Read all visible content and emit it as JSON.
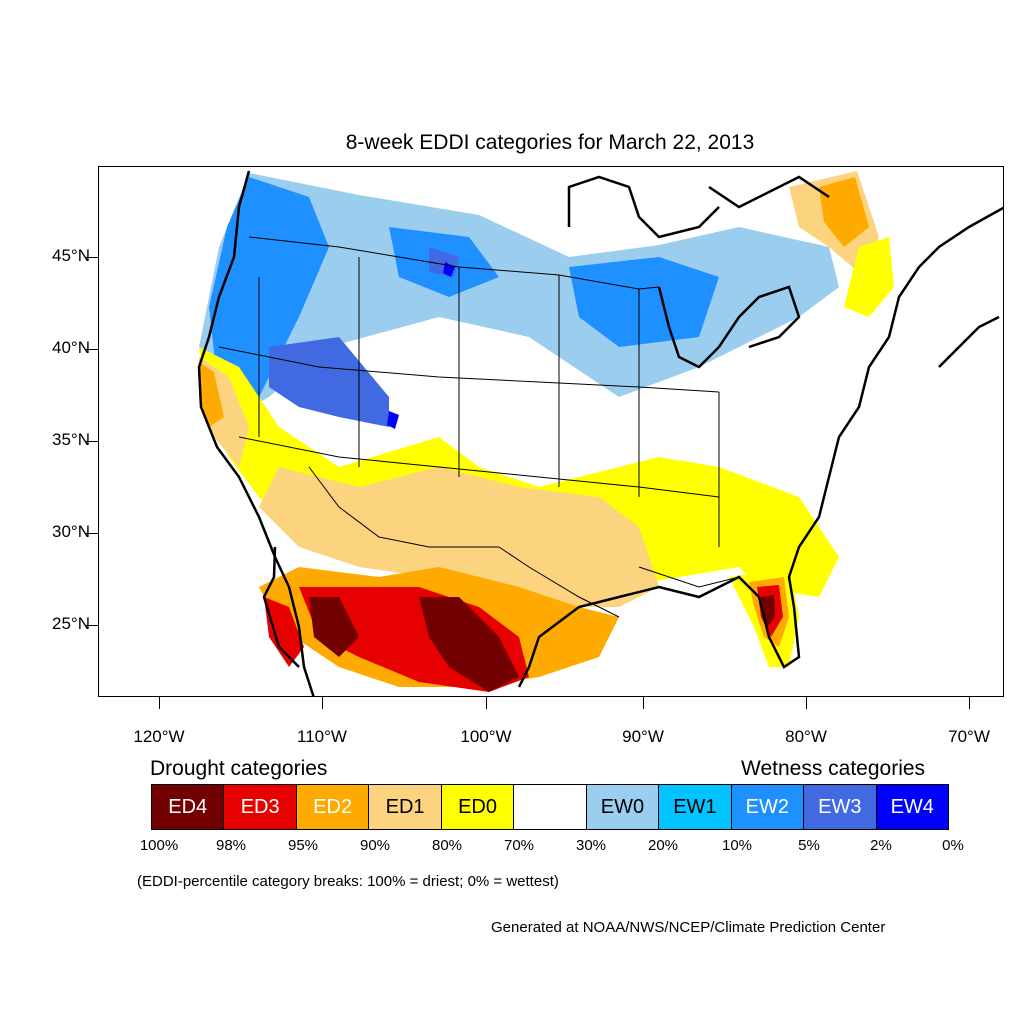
{
  "title": "8-week EDDI categories for March 22, 2013",
  "latitude_labels": [
    "45°N",
    "40°N",
    "35°N",
    "30°N",
    "25°N"
  ],
  "longitude_labels": [
    "120°W",
    "110°W",
    "100°W",
    "90°W",
    "80°W",
    "70°W"
  ],
  "legend": {
    "drought_heading": "Drought categories",
    "wetness_heading": "Wetness categories",
    "categories": [
      {
        "label": "ED4",
        "color": "#730000",
        "text_color": "#ffffff"
      },
      {
        "label": "ED3",
        "color": "#e60000",
        "text_color": "#ffffff"
      },
      {
        "label": "ED2",
        "color": "#ffaa00",
        "text_color": "#ffffff"
      },
      {
        "label": "ED1",
        "color": "#fcd37f",
        "text_color": "#000000"
      },
      {
        "label": "ED0",
        "color": "#ffff00",
        "text_color": "#000000"
      },
      {
        "label": "",
        "color": "#ffffff",
        "text_color": "#000000"
      },
      {
        "label": "EW0",
        "color": "#9bcdef",
        "text_color": "#000000"
      },
      {
        "label": "EW1",
        "color": "#00c3ff",
        "text_color": "#000000"
      },
      {
        "label": "EW2",
        "color": "#1e90ff",
        "text_color": "#ffffff"
      },
      {
        "label": "EW3",
        "color": "#4169e1",
        "text_color": "#ffffff"
      },
      {
        "label": "EW4",
        "color": "#0000ff",
        "text_color": "#ffffff"
      }
    ],
    "percentiles": [
      "100%",
      "98%",
      "95%",
      "90%",
      "80%",
      "70%",
      "30%",
      "20%",
      "10%",
      "5%",
      "2%",
      "0%"
    ]
  },
  "note": "(EDDI-percentile category breaks: 100% = driest; 0% = wettest)",
  "credit": "Generated at NOAA/NWS/NCEP/Climate Prediction Center"
}
